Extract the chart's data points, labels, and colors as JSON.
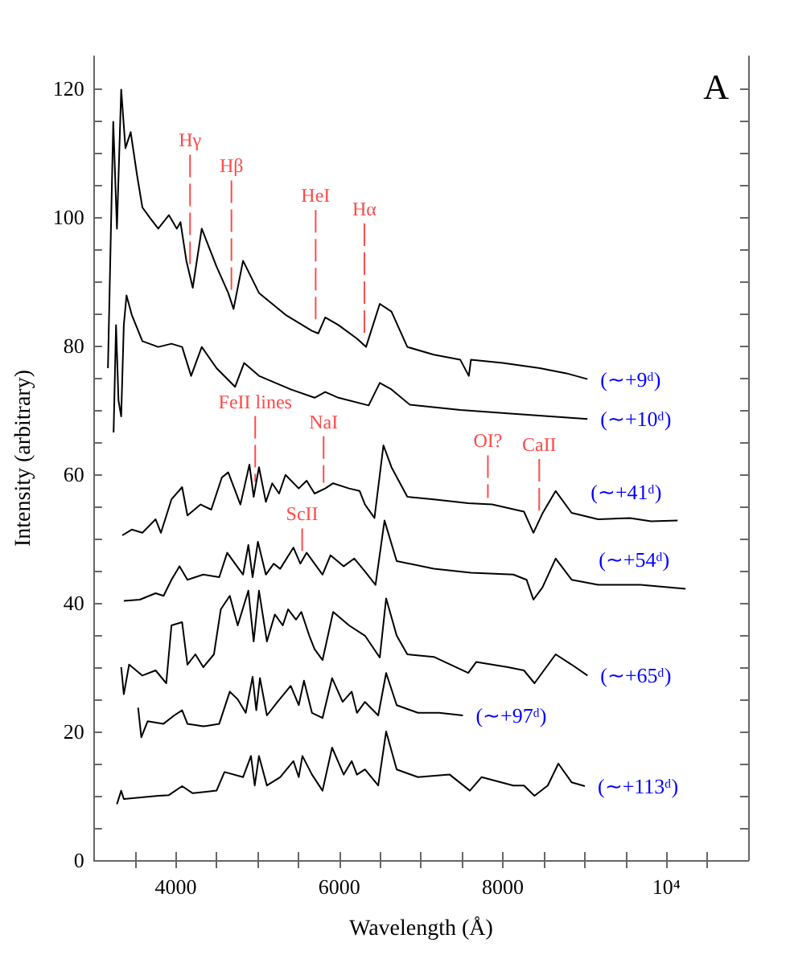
{
  "chart_data": {
    "type": "line",
    "xlabel": "Wavelength (Å)",
    "ylabel": "Intensity (arbitrary)",
    "xlim": [
      3000,
      11000
    ],
    "ylim": [
      0,
      125
    ],
    "xticks": [
      {
        "value": 3500,
        "label": null
      },
      4000,
      {
        "value": 4500,
        "label": null
      },
      {
        "value": 5000,
        "label": null
      },
      {
        "value": 5500,
        "label": null
      },
      6000,
      {
        "value": 6500,
        "label": null
      },
      {
        "value": 7000,
        "label": null
      },
      {
        "value": 7500,
        "label": null
      },
      8000,
      {
        "value": 8500,
        "label": null
      },
      {
        "value": 9000,
        "label": null
      },
      {
        "value": 9500,
        "label": null
      },
      {
        "value": 10000,
        "label": "10⁴"
      },
      {
        "value": 10500,
        "label": null
      }
    ],
    "yticks": [
      0,
      {
        "value": 5,
        "label": null
      },
      {
        "value": 10,
        "label": null
      },
      {
        "value": 15,
        "label": null
      },
      20,
      {
        "value": 25,
        "label": null
      },
      {
        "value": 30,
        "label": null
      },
      {
        "value": 35,
        "label": null
      },
      40,
      {
        "value": 45,
        "label": null
      },
      {
        "value": 50,
        "label": null
      },
      {
        "value": 55,
        "label": null
      },
      60,
      {
        "value": 65,
        "label": null
      },
      {
        "value": 70,
        "label": null
      },
      {
        "value": 75,
        "label": null
      },
      80,
      {
        "value": 85,
        "label": null
      },
      {
        "value": 90,
        "label": null
      },
      {
        "value": 95,
        "label": null
      },
      100,
      {
        "value": 105,
        "label": null
      },
      {
        "value": 110,
        "label": null
      },
      {
        "value": 115,
        "label": null
      },
      120
    ],
    "series": [
      {
        "name": "(∼+9ᵈ)",
        "color": "#000000",
        "x": [
          3171,
          3236,
          3281,
          3333,
          3385,
          3449,
          3527,
          3592,
          3689,
          3786,
          3916,
          4013,
          4058,
          4130,
          4208,
          4318,
          4499,
          4642,
          4707,
          4823,
          5018,
          5342,
          5666,
          5743,
          5828,
          5990,
          6216,
          6327,
          6495,
          6638,
          6832,
          7156,
          7480,
          7584,
          7610,
          7998,
          8452,
          8776,
          9035
        ],
        "values": [
          76.5,
          114.8,
          98.2,
          119.8,
          110.7,
          113.2,
          106.5,
          101.5,
          99.8,
          98.2,
          100.3,
          98.2,
          99.2,
          93.2,
          89,
          98.2,
          92.3,
          88.2,
          85.7,
          93.2,
          88.2,
          84.8,
          82.3,
          81.9,
          84.4,
          83.2,
          81.1,
          79.8,
          86.5,
          85.3,
          79.8,
          78.6,
          77.8,
          75.3,
          77.8,
          77.3,
          76.5,
          75.7,
          74.8
        ]
      },
      {
        "name": "(∼+10ᵈ)",
        "color": "#000000",
        "x": [
          3240,
          3270,
          3300,
          3333,
          3365,
          3398,
          3462,
          3592,
          3786,
          3948,
          4078,
          4188,
          4318,
          4499,
          4726,
          4836,
          5018,
          5406,
          5698,
          5828,
          5990,
          6359,
          6495,
          6638,
          6864,
          7480,
          8128,
          9035
        ],
        "values": [
          66.5,
          83.2,
          71.5,
          69,
          83.2,
          87.8,
          84.8,
          80.7,
          79.8,
          80.3,
          79.8,
          75.3,
          79.8,
          76.5,
          73.6,
          77.3,
          75.3,
          73.2,
          71.9,
          72.8,
          71.9,
          70.7,
          74.2,
          73.2,
          70.8,
          70,
          69.4,
          68.6
        ]
      },
      {
        "name": "(∼+41ᵈ)",
        "color": "#000000",
        "x": [
          3346,
          3462,
          3592,
          3754,
          3819,
          3948,
          4078,
          4143,
          4305,
          4434,
          4564,
          4642,
          4791,
          4901,
          4953,
          5018,
          5102,
          5180,
          5264,
          5342,
          5504,
          5601,
          5698,
          5828,
          5925,
          6119,
          6249,
          6314,
          6430,
          6540,
          6638,
          6832,
          7156,
          7577,
          7869,
          8258,
          8374,
          8484,
          8646,
          8841,
          9165,
          9554,
          9813,
          10137
        ],
        "values": [
          50.5,
          51.4,
          50.9,
          53,
          50.9,
          56.1,
          58,
          53.6,
          55.3,
          54.5,
          59.5,
          60.3,
          55.3,
          61.5,
          56.5,
          61.1,
          55.7,
          58.6,
          57,
          59.9,
          57.8,
          59,
          57,
          57.8,
          58.6,
          57.8,
          57.4,
          55.3,
          53.2,
          64.5,
          61.1,
          56.5,
          56.1,
          55.5,
          55.3,
          54.2,
          50.9,
          53.9,
          57.4,
          54,
          53,
          53.2,
          52.7,
          52.8
        ]
      },
      {
        "name": "(∼+54ᵈ)",
        "color": "#000000",
        "x": [
          3365,
          3560,
          3754,
          3851,
          3948,
          4046,
          4143,
          4337,
          4532,
          4629,
          4823,
          4888,
          4940,
          5005,
          5102,
          5199,
          5277,
          5439,
          5523,
          5601,
          5795,
          5892,
          6054,
          6184,
          6314,
          6443,
          6553,
          6702,
          7156,
          7610,
          8128,
          8290,
          8374,
          8484,
          8646,
          8841,
          9165,
          9683,
          10234
        ],
        "values": [
          40.3,
          40.5,
          41.5,
          41.1,
          43.6,
          45.7,
          43.6,
          44.4,
          44,
          47.8,
          44.4,
          49,
          44,
          49.5,
          44.4,
          46.1,
          45.3,
          48.6,
          46.1,
          47.8,
          44.4,
          47.4,
          45.7,
          46.9,
          44.9,
          42.8,
          52.8,
          46.5,
          45.3,
          44.7,
          44.4,
          43.6,
          40.5,
          42.4,
          46.9,
          43.6,
          42.8,
          42.8,
          42.2
        ]
      },
      {
        "name": "(∼+65ᵈ)",
        "color": "#000000",
        "x": [
          3333,
          3365,
          3430,
          3592,
          3754,
          3884,
          3948,
          4078,
          4143,
          4240,
          4337,
          4467,
          4551,
          4661,
          4758,
          4888,
          4953,
          5018,
          5115,
          5212,
          5309,
          5374,
          5471,
          5536,
          5633,
          5698,
          5795,
          5925,
          6119,
          6314,
          6495,
          6573,
          6702,
          6832,
          7156,
          7577,
          7674,
          8063,
          8258,
          8387,
          8646,
          8841,
          9035
        ],
        "values": [
          30,
          25.8,
          30.4,
          28.7,
          29.5,
          27.5,
          36.5,
          37,
          30.4,
          32,
          30,
          32,
          39,
          41.1,
          36.5,
          41.9,
          34,
          41.9,
          34,
          38.2,
          36.5,
          39,
          37.4,
          38.6,
          34.9,
          32.8,
          31.1,
          38.6,
          36.5,
          34.9,
          31.5,
          40.7,
          34.9,
          32,
          31.6,
          29.1,
          30.8,
          30,
          29.5,
          27.5,
          32,
          30.4,
          28.7
        ]
      },
      {
        "name": "(∼+97ᵈ)",
        "color": "#000000",
        "x": [
          3540,
          3579,
          3657,
          3851,
          3981,
          4078,
          4143,
          4337,
          4532,
          4661,
          4758,
          4856,
          4940,
          4985,
          5030,
          5115,
          5245,
          5406,
          5504,
          5568,
          5666,
          5795,
          5912,
          6041,
          6152,
          6216,
          6314,
          6476,
          6573,
          6702,
          6962,
          7221,
          7512
        ],
        "values": [
          23.7,
          19.1,
          21.6,
          21.2,
          22.5,
          23.3,
          21.2,
          20.8,
          21.2,
          26.2,
          25,
          22.9,
          28.5,
          23.3,
          28.3,
          22.5,
          24.6,
          27.1,
          24.1,
          27.9,
          22.9,
          22.1,
          28.3,
          24.6,
          26.2,
          22.9,
          24.6,
          22.5,
          29.1,
          24.1,
          22.9,
          22.9,
          22.5
        ]
      },
      {
        "name": "(∼+113ᵈ)",
        "color": "#000000",
        "x": [
          3281,
          3333,
          3365,
          3786,
          3916,
          4078,
          4208,
          4499,
          4596,
          4823,
          4920,
          4966,
          5018,
          5115,
          5277,
          5439,
          5504,
          5549,
          5666,
          5795,
          5912,
          6054,
          6152,
          6216,
          6314,
          6476,
          6573,
          6702,
          6962,
          7350,
          7597,
          7739,
          8128,
          8258,
          8387,
          8549,
          8679,
          8841,
          9003
        ],
        "values": [
          8.7,
          10.8,
          9.5,
          10,
          10.1,
          11.5,
          10.4,
          10.8,
          13.7,
          12.9,
          16.2,
          11.6,
          16.2,
          11.6,
          12.9,
          15.4,
          12.9,
          16.2,
          13.3,
          10.8,
          17.5,
          13.3,
          15.4,
          13.3,
          14.1,
          11.6,
          20,
          14.1,
          12.9,
          13.3,
          10.8,
          12.9,
          11.6,
          11.6,
          10,
          11.6,
          15,
          12.1,
          11.5
        ]
      }
    ],
    "annotations": [
      "A",
      {
        "text": "Hγ",
        "x": 4175,
        "y": 90.7
      },
      {
        "text": "Hβ",
        "x": 4681,
        "y": 86.7
      },
      {
        "text": "HeI",
        "x": 5711,
        "y": 82.1
      },
      {
        "text": "Hα",
        "x": 6307,
        "y": 80.0
      },
      {
        "text": "FeII lines",
        "x": 4972,
        "y": 57.8
      },
      {
        "text": "NaI",
        "x": 5808,
        "y": 57.7
      },
      {
        "text": "CaII",
        "x": 8445,
        "y": 52.8
      },
      {
        "text": "OI?",
        "x": 7817,
        "y": 55.3
      },
      {
        "text": "ScII",
        "x": 5546,
        "y": 46.6
      }
    ]
  }
}
